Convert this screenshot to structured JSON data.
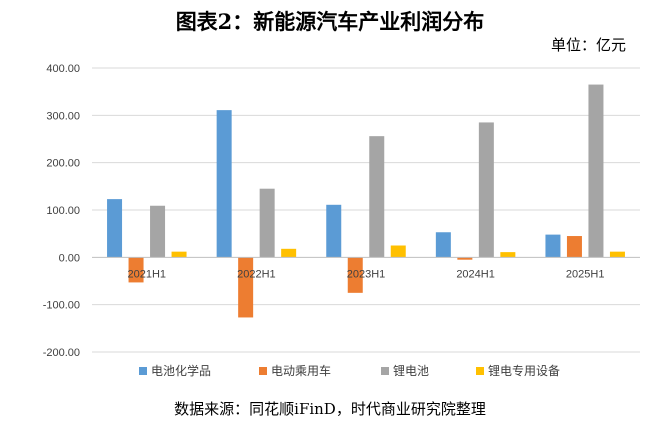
{
  "header": {
    "title": "图表2：新能源汽车产业利润分布",
    "unit": "单位：亿元"
  },
  "footer": {
    "source": "数据来源：同花顺iFinD，时代商业研究院整理"
  },
  "chart_data": {
    "type": "bar",
    "categories": [
      "2021H1",
      "2022H1",
      "2023H1",
      "2024H1",
      "2025H1"
    ],
    "series": [
      {
        "name": "电池化学品",
        "color": "#5B9BD5",
        "values": [
          123,
          311,
          111,
          53,
          48
        ]
      },
      {
        "name": "电动乘用车",
        "color": "#ED7D31",
        "values": [
          -53,
          -127,
          -75,
          -5,
          45
        ]
      },
      {
        "name": "锂电池",
        "color": "#A5A5A5",
        "values": [
          109,
          145,
          256,
          285,
          365
        ]
      },
      {
        "name": "锂电专用设备",
        "color": "#FFC000",
        "values": [
          12,
          18,
          25,
          11,
          12
        ]
      }
    ],
    "ylim": [
      -200,
      400
    ],
    "yticks": [
      -200,
      -100,
      0,
      100,
      200,
      300,
      400
    ],
    "ytick_labels": [
      "-200.00",
      "-100.00",
      "0.00",
      "100.00",
      "200.00",
      "300.00",
      "400.00"
    ],
    "grid": true,
    "legend_position": "bottom"
  }
}
